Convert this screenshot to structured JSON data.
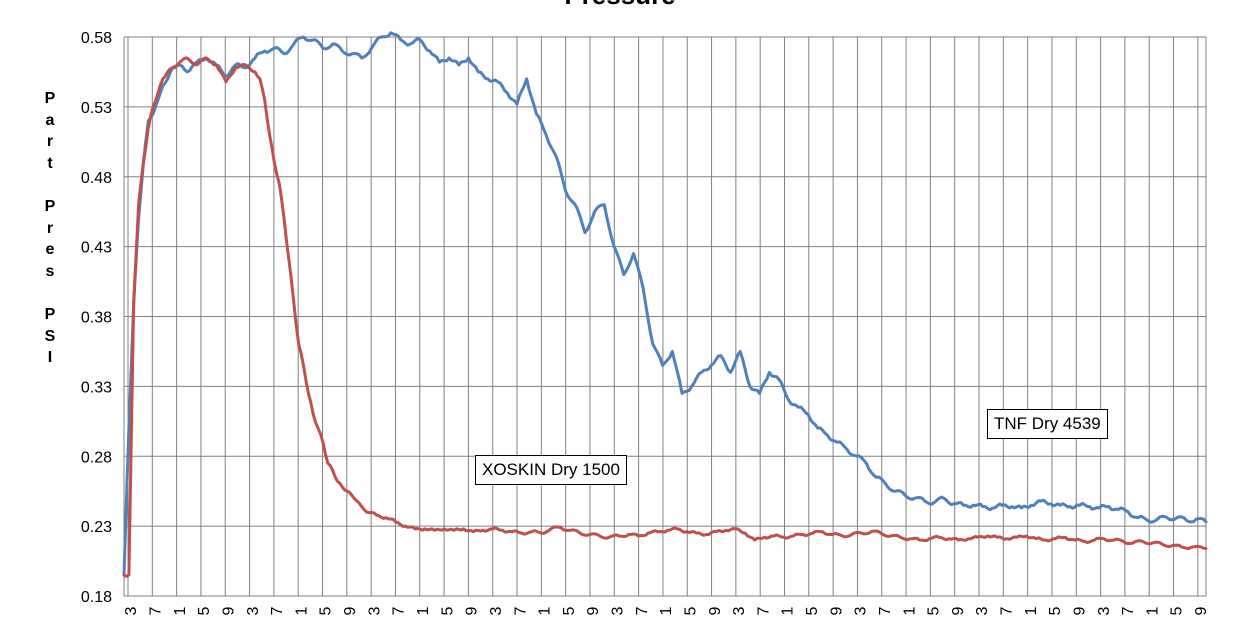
{
  "chart_data": {
    "type": "line",
    "title": "Pressure",
    "ylabel": "Part Pres PSI",
    "xlabel": "",
    "ylim": [
      0.18,
      0.58
    ],
    "yticks": [
      "0.58",
      "0.53",
      "0.48",
      "0.43",
      "0.38",
      "0.33",
      "0.28",
      "0.23",
      "0.18"
    ],
    "xticks": [
      "3",
      "7",
      "1",
      "5",
      "9",
      "3",
      "7",
      "1",
      "5",
      "9",
      "3",
      "7",
      "1",
      "5",
      "9",
      "3",
      "7",
      "1",
      "5",
      "9",
      "3",
      "7",
      "1",
      "5",
      "9",
      "3",
      "7",
      "1",
      "5",
      "9",
      "3",
      "7",
      "1",
      "5",
      "9",
      "3",
      "7",
      "1",
      "5",
      "9",
      "3",
      "7",
      "1",
      "5",
      "9"
    ],
    "grid": true,
    "series": [
      {
        "name": "TNF Dry 4539",
        "color": "#4F81BD",
        "x": [
          0,
          2,
          4,
          6,
          8,
          10,
          12,
          14,
          16,
          18,
          20,
          23,
          26,
          30,
          34,
          38,
          42,
          46,
          50,
          54,
          58,
          62,
          66,
          70,
          74,
          78,
          82,
          86,
          90,
          94,
          98,
          102,
          106,
          110,
          114,
          118,
          122,
          126,
          130,
          134,
          138,
          142,
          146,
          150,
          154,
          158,
          162,
          166,
          170,
          174,
          178,
          182,
          186,
          190,
          194,
          198,
          202,
          206,
          210,
          214,
          218,
          222,
          226,
          230,
          234,
          238,
          242,
          246,
          250,
          254,
          258,
          262,
          266,
          270,
          274,
          278,
          282,
          286,
          290,
          294,
          298,
          302,
          306,
          310,
          314,
          318,
          322,
          326,
          330,
          334,
          338,
          342,
          346,
          350,
          354,
          358,
          362,
          366,
          370,
          374,
          378,
          382,
          386,
          390,
          394,
          398,
          402,
          406,
          410,
          414,
          418,
          422,
          426,
          430,
          434,
          438,
          442,
          446
        ],
        "values": [
          0.195,
          0.3,
          0.39,
          0.45,
          0.49,
          0.52,
          0.525,
          0.535,
          0.545,
          0.55,
          0.558,
          0.56,
          0.555,
          0.562,
          0.565,
          0.56,
          0.552,
          0.56,
          0.558,
          0.565,
          0.57,
          0.572,
          0.568,
          0.575,
          0.58,
          0.578,
          0.572,
          0.575,
          0.57,
          0.568,
          0.565,
          0.572,
          0.58,
          0.583,
          0.578,
          0.575,
          0.578,
          0.57,
          0.562,
          0.565,
          0.56,
          0.565,
          0.555,
          0.55,
          0.548,
          0.54,
          0.532,
          0.55,
          0.525,
          0.51,
          0.495,
          0.47,
          0.46,
          0.44,
          0.455,
          0.46,
          0.43,
          0.41,
          0.425,
          0.4,
          0.36,
          0.345,
          0.355,
          0.325,
          0.33,
          0.34,
          0.345,
          0.352,
          0.34,
          0.355,
          0.33,
          0.325,
          0.34,
          0.335,
          0.32,
          0.315,
          0.31,
          0.3,
          0.295,
          0.29,
          0.285,
          0.28,
          0.275,
          0.265,
          0.26,
          0.255,
          0.252,
          0.25,
          0.248,
          0.247,
          0.25,
          0.246,
          0.245,
          0.245,
          0.244,
          0.243,
          0.245,
          0.244,
          0.243,
          0.245,
          0.248,
          0.246,
          0.245,
          0.244,
          0.245,
          0.244,
          0.243,
          0.244,
          0.242,
          0.24,
          0.236,
          0.234,
          0.235,
          0.236,
          0.236,
          0.234,
          0.235,
          0.233
        ]
      },
      {
        "name": "XOSKIN Dry 1500",
        "color": "#C0504D",
        "x": [
          0,
          2,
          4,
          6,
          8,
          10,
          12,
          14,
          16,
          18,
          20,
          23,
          26,
          30,
          34,
          38,
          42,
          46,
          50,
          54,
          56,
          58,
          60,
          62,
          64,
          66,
          68,
          70,
          72,
          74,
          76,
          78,
          80,
          82,
          84,
          86,
          88,
          90,
          92,
          94,
          96,
          98,
          100,
          104,
          108,
          112,
          116,
          120,
          124,
          128,
          132,
          136,
          140,
          144,
          148,
          152,
          156,
          160,
          164,
          168,
          172,
          176,
          180,
          184,
          188,
          192,
          196,
          200,
          204,
          208,
          212,
          216,
          220,
          224,
          228,
          232,
          236,
          240,
          244,
          248,
          252,
          256,
          260,
          264,
          268,
          272,
          276,
          280,
          284,
          288,
          292,
          296,
          300,
          304,
          308,
          312,
          316,
          320,
          324,
          328,
          332,
          336,
          340,
          344,
          348,
          352,
          356,
          360,
          364,
          368,
          372,
          376,
          380,
          384,
          388,
          392,
          396,
          400,
          404,
          408,
          412,
          416,
          420,
          424,
          428,
          432,
          436,
          440,
          446
        ],
        "values": [
          0.195,
          0.195,
          0.39,
          0.46,
          0.49,
          0.515,
          0.53,
          0.54,
          0.55,
          0.555,
          0.558,
          0.562,
          0.565,
          0.56,
          0.565,
          0.56,
          0.548,
          0.558,
          0.56,
          0.555,
          0.55,
          0.535,
          0.51,
          0.49,
          0.475,
          0.45,
          0.42,
          0.39,
          0.36,
          0.345,
          0.325,
          0.31,
          0.3,
          0.29,
          0.275,
          0.27,
          0.262,
          0.258,
          0.255,
          0.252,
          0.248,
          0.244,
          0.24,
          0.238,
          0.236,
          0.233,
          0.23,
          0.228,
          0.228,
          0.227,
          0.228,
          0.227,
          0.228,
          0.226,
          0.227,
          0.228,
          0.227,
          0.226,
          0.225,
          0.226,
          0.225,
          0.228,
          0.229,
          0.227,
          0.225,
          0.224,
          0.223,
          0.222,
          0.223,
          0.224,
          0.223,
          0.225,
          0.226,
          0.227,
          0.228,
          0.226,
          0.225,
          0.224,
          0.226,
          0.227,
          0.228,
          0.225,
          0.22,
          0.222,
          0.223,
          0.222,
          0.223,
          0.224,
          0.225,
          0.226,
          0.224,
          0.223,
          0.224,
          0.225,
          0.226,
          0.225,
          0.223,
          0.222,
          0.221,
          0.22,
          0.221,
          0.222,
          0.221,
          0.22,
          0.221,
          0.222,
          0.223,
          0.222,
          0.221,
          0.222,
          0.223,
          0.221,
          0.22,
          0.221,
          0.222,
          0.22,
          0.219,
          0.22,
          0.221,
          0.22,
          0.219,
          0.218,
          0.219,
          0.218,
          0.217,
          0.216,
          0.215,
          0.215,
          0.214
        ]
      }
    ],
    "annotations": [
      {
        "text": "TNF Dry 4539",
        "series": "TNF Dry 4539"
      },
      {
        "text": "XOSKIN Dry 1500",
        "series": "XOSKIN Dry 1500"
      }
    ]
  }
}
